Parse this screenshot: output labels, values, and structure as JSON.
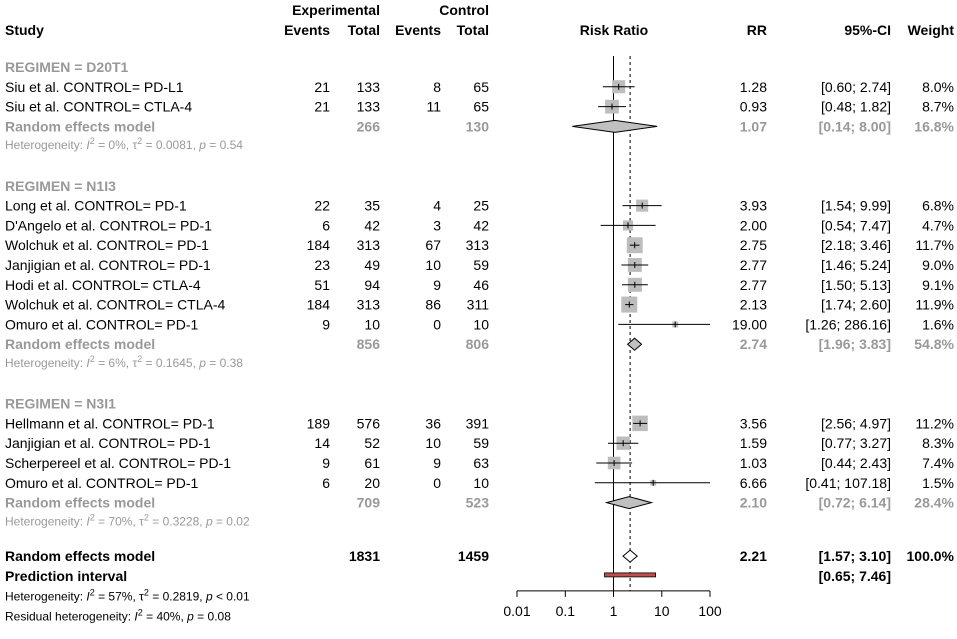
{
  "chart_data": {
    "type": "forest",
    "title": "",
    "axis": {
      "label": "Risk Ratio",
      "scale": "log",
      "ticks": [
        "0.01",
        "0.1",
        "1",
        "10",
        "100"
      ],
      "tick_values": [
        0.01,
        0.1,
        1,
        10,
        100
      ],
      "xlim": [
        0.01,
        100
      ],
      "reference_line": 1,
      "overall_line": 2.21
    },
    "headers": {
      "study": "Study",
      "experimental": "Experimental",
      "control": "Control",
      "events": "Events",
      "total": "Total",
      "plot": "Risk Ratio",
      "rr": "RR",
      "ci": "95%-CI",
      "weight": "Weight"
    },
    "groups": [
      {
        "label": "REGIMEN = D20T1",
        "studies": [
          {
            "name": "Siu et al. CONTROL= PD-L1",
            "exp_events": "21",
            "exp_total": "133",
            "ctl_events": "8",
            "ctl_total": "65",
            "rr": 1.28,
            "lower": 0.6,
            "upper": 2.74,
            "rr_text": "1.28",
            "ci_text": "[0.60;  2.74]",
            "weight": "8.0%",
            "w": 8.0
          },
          {
            "name": "Siu et al. CONTROL= CTLA-4",
            "exp_events": "21",
            "exp_total": "133",
            "ctl_events": "11",
            "ctl_total": "65",
            "rr": 0.93,
            "lower": 0.48,
            "upper": 1.82,
            "rr_text": "0.93",
            "ci_text": "[0.48;  1.82]",
            "weight": "8.7%",
            "w": 8.7
          }
        ],
        "summary": {
          "label": "Random effects model",
          "exp_total": "266",
          "ctl_total": "130",
          "rr": 1.07,
          "lower": 0.14,
          "upper": 8.0,
          "rr_text": "1.07",
          "ci_text": "[0.14;  8.00]",
          "weight": "16.8%"
        },
        "heterogeneity": "Heterogeneity: I² = 0%, τ² = 0.0081, p = 0.54"
      },
      {
        "label": "REGIMEN = N1I3",
        "studies": [
          {
            "name": "Long et al. CONTROL= PD-1",
            "exp_events": "22",
            "exp_total": "35",
            "ctl_events": "4",
            "ctl_total": "25",
            "rr": 3.93,
            "lower": 1.54,
            "upper": 9.99,
            "rr_text": "3.93",
            "ci_text": "[1.54;  9.99]",
            "weight": "6.8%",
            "w": 6.8
          },
          {
            "name": "D'Angelo et al. CONTROL= PD-1",
            "exp_events": "6",
            "exp_total": "42",
            "ctl_events": "3",
            "ctl_total": "42",
            "rr": 2.0,
            "lower": 0.54,
            "upper": 7.47,
            "rr_text": "2.00",
            "ci_text": "[0.54;  7.47]",
            "weight": "4.7%",
            "w": 4.7
          },
          {
            "name": "Wolchuk et al. CONTROL= PD-1",
            "exp_events": "184",
            "exp_total": "313",
            "ctl_events": "67",
            "ctl_total": "313",
            "rr": 2.75,
            "lower": 2.18,
            "upper": 3.46,
            "rr_text": "2.75",
            "ci_text": "[2.18;  3.46]",
            "weight": "11.7%",
            "w": 11.7
          },
          {
            "name": "Janjigian et al. CONTROL= PD-1",
            "exp_events": "23",
            "exp_total": "49",
            "ctl_events": "10",
            "ctl_total": "59",
            "rr": 2.77,
            "lower": 1.46,
            "upper": 5.24,
            "rr_text": "2.77",
            "ci_text": "[1.46;  5.24]",
            "weight": "9.0%",
            "w": 9.0
          },
          {
            "name": "Hodi et al. CONTROL= CTLA-4",
            "exp_events": "51",
            "exp_total": "94",
            "ctl_events": "9",
            "ctl_total": "46",
            "rr": 2.77,
            "lower": 1.5,
            "upper": 5.13,
            "rr_text": "2.77",
            "ci_text": "[1.50;  5.13]",
            "weight": "9.1%",
            "w": 9.1
          },
          {
            "name": "Wolchuk et al. CONTROL= CTLA-4",
            "exp_events": "184",
            "exp_total": "313",
            "ctl_events": "86",
            "ctl_total": "311",
            "rr": 2.13,
            "lower": 1.74,
            "upper": 2.6,
            "rr_text": "2.13",
            "ci_text": "[1.74;  2.60]",
            "weight": "11.9%",
            "w": 11.9
          },
          {
            "name": "Omuro et al. CONTROL= PD-1",
            "exp_events": "9",
            "exp_total": "10",
            "ctl_events": "0",
            "ctl_total": "10",
            "rr": 19.0,
            "lower": 1.26,
            "upper": 286.16,
            "rr_text": "19.00",
            "ci_text": "[1.26; 286.16]",
            "weight": "1.6%",
            "w": 1.6
          }
        ],
        "summary": {
          "label": "Random effects model",
          "exp_total": "856",
          "ctl_total": "806",
          "rr": 2.74,
          "lower": 1.96,
          "upper": 3.83,
          "rr_text": "2.74",
          "ci_text": "[1.96;  3.83]",
          "weight": "54.8%"
        },
        "heterogeneity": "Heterogeneity: I² = 6%, τ² = 0.1645, p = 0.38"
      },
      {
        "label": "REGIMEN = N3I1",
        "studies": [
          {
            "name": "Hellmann et al. CONTROL= PD-1",
            "exp_events": "189",
            "exp_total": "576",
            "ctl_events": "36",
            "ctl_total": "391",
            "rr": 3.56,
            "lower": 2.56,
            "upper": 4.97,
            "rr_text": "3.56",
            "ci_text": "[2.56;  4.97]",
            "weight": "11.2%",
            "w": 11.2
          },
          {
            "name": "Janjigian et al. CONTROL= PD-1",
            "exp_events": "14",
            "exp_total": "52",
            "ctl_events": "10",
            "ctl_total": "59",
            "rr": 1.59,
            "lower": 0.77,
            "upper": 3.27,
            "rr_text": "1.59",
            "ci_text": "[0.77;  3.27]",
            "weight": "8.3%",
            "w": 8.3
          },
          {
            "name": "Scherpereel et al. CONTROL= PD-1",
            "exp_events": "9",
            "exp_total": "61",
            "ctl_events": "9",
            "ctl_total": "63",
            "rr": 1.03,
            "lower": 0.44,
            "upper": 2.43,
            "rr_text": "1.03",
            "ci_text": "[0.44;  2.43]",
            "weight": "7.4%",
            "w": 7.4
          },
          {
            "name": "Omuro et al. CONTROL= PD-1",
            "exp_events": "6",
            "exp_total": "20",
            "ctl_events": "0",
            "ctl_total": "10",
            "rr": 6.66,
            "lower": 0.41,
            "upper": 107.18,
            "rr_text": "6.66",
            "ci_text": "[0.41; 107.18]",
            "weight": "1.5%",
            "w": 1.5
          }
        ],
        "summary": {
          "label": "Random effects model",
          "exp_total": "709",
          "ctl_total": "523",
          "rr": 2.1,
          "lower": 0.72,
          "upper": 6.14,
          "rr_text": "2.10",
          "ci_text": "[0.72;  6.14]",
          "weight": "28.4%"
        },
        "heterogeneity": "Heterogeneity: I² = 70%, τ² = 0.3228, p = 0.02"
      }
    ],
    "overall": {
      "label": "Random effects model",
      "exp_total": "1831",
      "ctl_total": "1459",
      "rr": 2.21,
      "lower": 1.57,
      "upper": 3.1,
      "rr_text": "2.21",
      "ci_text": "[1.57;  3.10]",
      "weight": "100.0%"
    },
    "prediction": {
      "label": "Prediction interval",
      "lower": 0.65,
      "upper": 7.46,
      "ci_text": "[0.65;  7.46]"
    },
    "heterogeneity": "Heterogeneity: I² = 57%, τ² = 0.2819, p < 0.01",
    "residual_heterogeneity": "Residual heterogeneity: I² = 40%, p = 0.08",
    "colors": {
      "square": "#bdbdbd",
      "diamond": "#c0c0c0",
      "prediction": "#c0504d",
      "grey_text": "#999999"
    }
  }
}
